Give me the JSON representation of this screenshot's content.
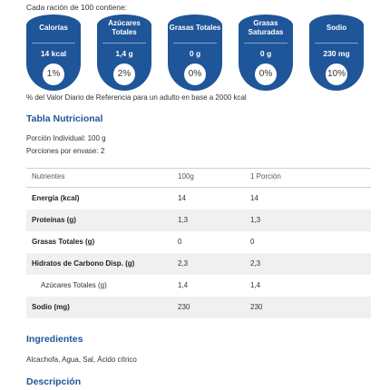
{
  "serving_intro": "Cada ración de 100 contiene:",
  "badges": [
    {
      "name": "Calorías",
      "value": "14 kcal",
      "percent": "1%"
    },
    {
      "name": "Azúcares Totales",
      "value": "1,4 g",
      "percent": "2%"
    },
    {
      "name": "Grasas Totales",
      "value": "0 g",
      "percent": "0%"
    },
    {
      "name": "Grasas Saturadas",
      "value": "0 g",
      "percent": "0%"
    },
    {
      "name": "Sodio",
      "value": "230 mg",
      "percent": "10%"
    }
  ],
  "daily_value_note": "% del Valor Diario de Referencia para un adulto en base a 2000 kcal",
  "nutrition_table": {
    "title": "Tabla Nutricional",
    "portion_size": "Porción Individual: 100 g",
    "portions_per_pack": "Porciones por envase: 2",
    "headers": [
      "Nutrientes",
      "100g",
      "1 Porción"
    ],
    "rows": [
      {
        "name": "Energía (kcal)",
        "per100": "14",
        "perPortion": "14"
      },
      {
        "name": "Proteínas (g)",
        "per100": "1,3",
        "perPortion": "1,3"
      },
      {
        "name": "Grasas Totales (g)",
        "per100": "0",
        "perPortion": "0"
      },
      {
        "name": "Hidratos de Carbono Disp. (g)",
        "per100": "2,3",
        "perPortion": "2,3"
      },
      {
        "name": "Azúcares Totales (g)",
        "per100": "1,4",
        "perPortion": "1,4"
      },
      {
        "name": "Sodio (mg)",
        "per100": "230",
        "perPortion": "230"
      }
    ]
  },
  "ingredients": {
    "title": "Ingredientes",
    "text": "Alcachofa, Agua, Sal, Ácido cítrico"
  },
  "description": {
    "title": "Descripción"
  },
  "colors": {
    "accent": "#1f5599",
    "row_shade": "#f0f0f0"
  }
}
